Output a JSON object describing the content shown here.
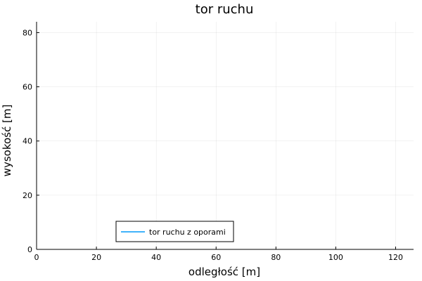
{
  "chart_data": {
    "type": "line",
    "title": "tor ruchu",
    "xlabel": "odległość [m]",
    "ylabel": "wysokość [m]",
    "xlim": [
      0,
      126
    ],
    "ylim": [
      0,
      84
    ],
    "x_ticks": [
      "0",
      "20",
      "40",
      "60",
      "80",
      "100",
      "120"
    ],
    "y_ticks": [
      "0",
      "20",
      "40",
      "60",
      "80"
    ],
    "grid": true,
    "legend_position": "bottom-left",
    "series": [
      {
        "name": "tor ruchu z oporami",
        "color": "#009AFA",
        "x": [],
        "y": []
      }
    ]
  }
}
